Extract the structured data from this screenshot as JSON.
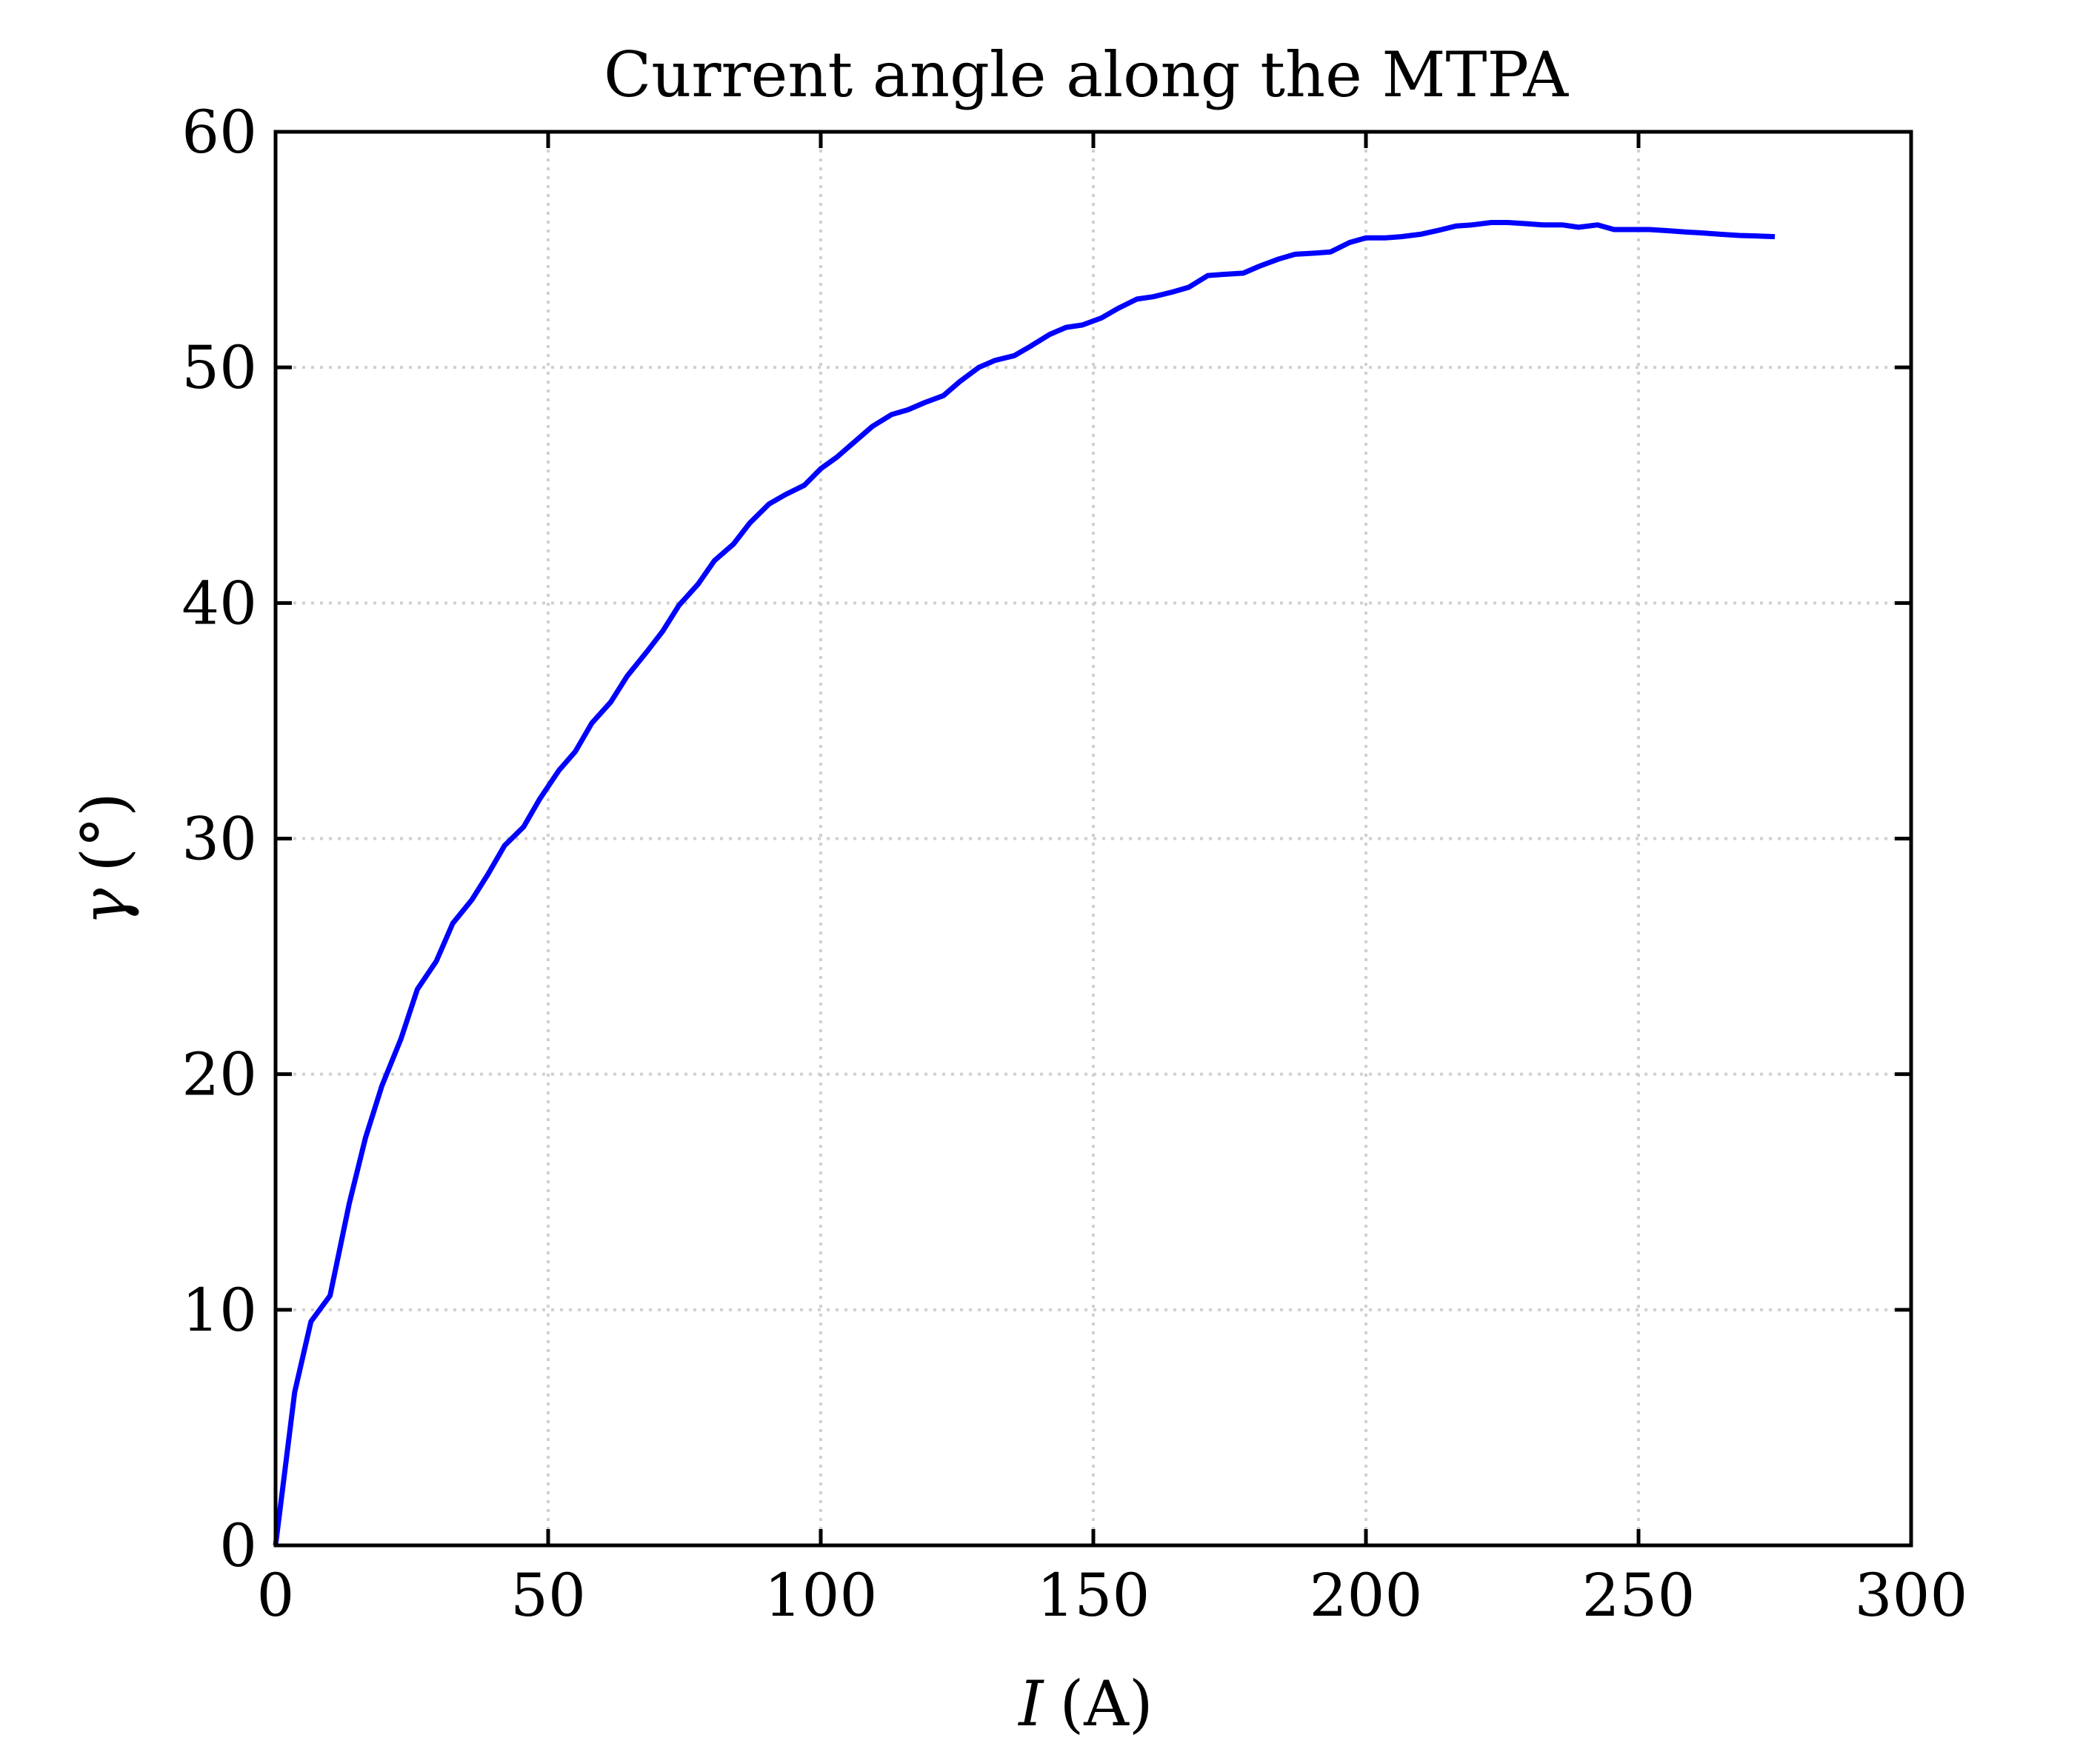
{
  "chart_data": {
    "type": "line",
    "title": "Current angle along the MTPA",
    "xlabel_var": "I",
    "xlabel_unit": "(A)",
    "ylabel_var": "γ",
    "ylabel_unit": "(°)",
    "xlim": [
      0,
      300
    ],
    "ylim": [
      0,
      60
    ],
    "xticks": [
      "0",
      "50",
      "100",
      "150",
      "200",
      "250",
      "300"
    ],
    "yticks": [
      "0",
      "10",
      "20",
      "30",
      "40",
      "50",
      "60"
    ],
    "grid": true,
    "line_color": "#0000ff",
    "series": [
      {
        "x": [
          0,
          3.5,
          6.5,
          10,
          13.5,
          16.5,
          19.5,
          23,
          26,
          29.5,
          32.5,
          36,
          39,
          42,
          45.5,
          48.5,
          52,
          55,
          58,
          61.5,
          64.5,
          68,
          71,
          74,
          77.5,
          80.5,
          84,
          87,
          90.5,
          93.5,
          97,
          100,
          103,
          106.5,
          109.5,
          113,
          116,
          119,
          122.5,
          125.5,
          129,
          132,
          135.5,
          138.5,
          142,
          145,
          148,
          151.5,
          154.5,
          158,
          161,
          164.5,
          167.5,
          171,
          174,
          177.5,
          180.5,
          184,
          187,
          190.5,
          193.5,
          197,
          200,
          203.5,
          206.5,
          210,
          213,
          216.5,
          219.5,
          223,
          226,
          229.5,
          232.5,
          236,
          239,
          242.5,
          245.5,
          249,
          252,
          255.5,
          258.5,
          262,
          265,
          268.5,
          271.5,
          275
        ],
        "y": [
          0,
          6.5,
          9.5,
          10.6,
          14.5,
          17.3,
          19.5,
          21.5,
          23.6,
          24.8,
          26.4,
          27.4,
          28.5,
          29.7,
          30.5,
          31.7,
          32.9,
          33.7,
          34.9,
          35.8,
          36.9,
          37.9,
          38.8,
          39.9,
          40.8,
          41.8,
          42.5,
          43.4,
          44.2,
          44.6,
          45,
          45.7,
          46.2,
          46.9,
          47.5,
          48,
          48.2,
          48.5,
          48.8,
          49.4,
          50,
          50.3,
          50.5,
          50.9,
          51.4,
          51.7,
          51.8,
          52.1,
          52.5,
          52.9,
          53,
          53.2,
          53.4,
          53.9,
          53.95,
          54,
          54.3,
          54.6,
          54.8,
          54.85,
          54.9,
          55.3,
          55.5,
          55.5,
          55.55,
          55.65,
          55.8,
          56,
          56.05,
          56.15,
          56.15,
          56.1,
          56.05,
          56.05,
          55.95,
          56.05,
          55.85,
          55.85,
          55.85,
          55.8,
          55.75,
          55.7,
          55.65,
          55.6,
          55.58,
          55.55
        ]
      }
    ]
  }
}
